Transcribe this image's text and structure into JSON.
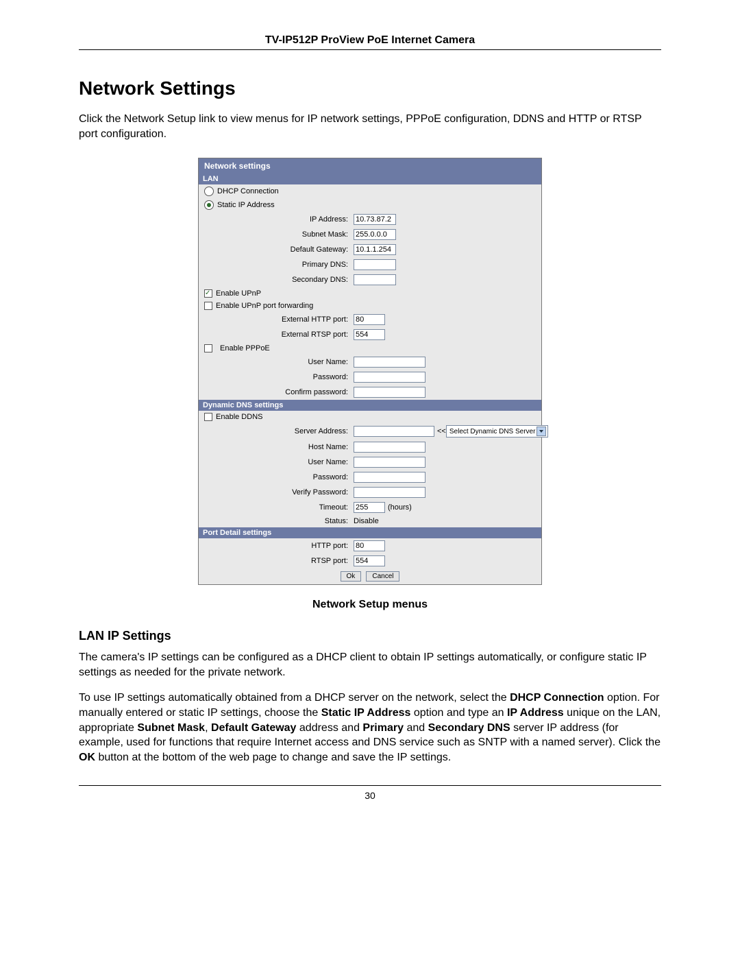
{
  "header_title": "TV-IP512P ProView PoE Internet Camera",
  "page_title": "Network Settings",
  "intro": "Click the Network Setup link to view menus for IP network settings, PPPoE configuration, DDNS and HTTP or RTSP port configuration.",
  "panel": {
    "title": "Network settings",
    "lan_header": "LAN",
    "dhcp_label": "DHCP Connection",
    "static_label": "Static IP Address",
    "ip_address_label": "IP Address:",
    "ip_address_value": "10.73.87.2",
    "subnet_mask_label": "Subnet Mask:",
    "subnet_mask_value": "255.0.0.0",
    "default_gateway_label": "Default Gateway:",
    "default_gateway_value": "10.1.1.254",
    "primary_dns_label": "Primary DNS:",
    "primary_dns_value": "",
    "secondary_dns_label": "Secondary DNS:",
    "secondary_dns_value": "",
    "enable_upnp_label": "Enable UPnP",
    "enable_upnp_fwd_label": "Enable UPnP port forwarding",
    "ext_http_label": "External HTTP port:",
    "ext_http_value": "80",
    "ext_rtsp_label": "External RTSP port:",
    "ext_rtsp_value": "554",
    "enable_pppoe_label": "Enable PPPoE",
    "pppoe_user_label": "User Name:",
    "pppoe_user_value": "",
    "pppoe_pass_label": "Password:",
    "pppoe_pass_value": "",
    "pppoe_conf_label": "Confirm password:",
    "pppoe_conf_value": "",
    "ddns_header": "Dynamic DNS settings",
    "enable_ddns_label": "Enable DDNS",
    "ddns_server_addr_label": "Server Address:",
    "ddns_server_addr_value": "",
    "ddns_select_prefix": "<<",
    "ddns_select_text": "Select Dynamic DNS Server",
    "ddns_host_label": "Host Name:",
    "ddns_host_value": "",
    "ddns_user_label": "User Name:",
    "ddns_user_value": "",
    "ddns_pass_label": "Password:",
    "ddns_pass_value": "",
    "ddns_verify_label": "Verify Password:",
    "ddns_verify_value": "",
    "ddns_timeout_label": "Timeout:",
    "ddns_timeout_value": "255",
    "ddns_timeout_unit": "(hours)",
    "ddns_status_label": "Status:",
    "ddns_status_value": "Disable",
    "port_header": "Port Detail settings",
    "http_port_label": "HTTP port:",
    "http_port_value": "80",
    "rtsp_port_label": "RTSP port:",
    "rtsp_port_value": "554",
    "ok_btn": "Ok",
    "cancel_btn": "Cancel"
  },
  "caption": "Network Setup menus",
  "lan_heading": "LAN IP Settings",
  "lan_para": "The camera's IP settings can be configured as a DHCP client to obtain IP settings automatically, or configure static IP settings as needed for the private network.",
  "lan_para2_a": "To use IP settings automatically obtained from a DHCP server on the network, select the ",
  "lan_para2_b": "DHCP Connection",
  "lan_para2_c": " option. For manually entered or static IP settings, choose the ",
  "lan_para2_d": "Static IP Address",
  "lan_para2_e": " option and type an ",
  "lan_para2_f": "IP Address",
  "lan_para2_g": " unique on the LAN, appropriate ",
  "lan_para2_h": "Subnet Mask",
  "lan_para2_i": ", ",
  "lan_para2_j": "Default Gateway",
  "lan_para2_k": " address and ",
  "lan_para2_l": "Primary",
  "lan_para2_m": " and ",
  "lan_para2_n": "Secondary DNS",
  "lan_para2_o": " server IP address (for example, used for functions that require Internet access and DNS service such as SNTP with a named server). Click the ",
  "lan_para2_p": "OK",
  "lan_para2_q": " button at the bottom of the web page to change and save the IP settings.",
  "page_number": "30"
}
